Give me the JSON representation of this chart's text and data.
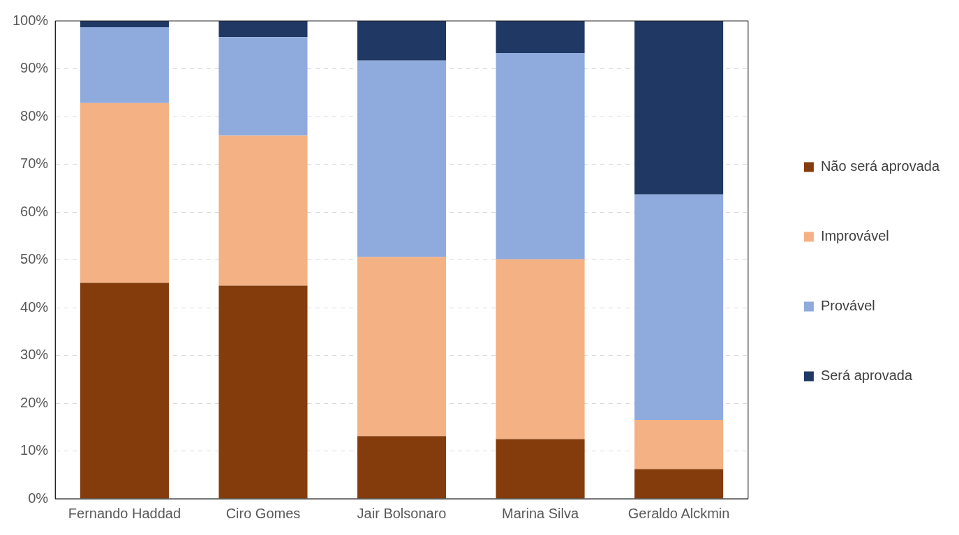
{
  "chart_data": {
    "type": "bar",
    "stacked": true,
    "categories": [
      "Fernando Haddad",
      "Ciro Gomes",
      "Jair Bolsonaro",
      "Marina Silva",
      "Geraldo Alckmin"
    ],
    "series": [
      {
        "name": "Não será aprovada",
        "color": "#843c0c",
        "values": [
          45.2,
          44.6,
          13.1,
          12.5,
          6.2
        ]
      },
      {
        "name": "Improvável",
        "color": "#f4b183",
        "values": [
          37.6,
          31.4,
          37.5,
          37.6,
          10.3
        ]
      },
      {
        "name": "Provável",
        "color": "#8faadc",
        "values": [
          15.9,
          20.6,
          41.1,
          43.2,
          47.2
        ]
      },
      {
        "name": "Será aprovada",
        "color": "#203864",
        "values": [
          1.3,
          3.4,
          8.3,
          6.7,
          36.3
        ]
      }
    ],
    "ylim": [
      0,
      100
    ],
    "yticks": [
      {
        "value": 0,
        "label": "0%"
      },
      {
        "value": 10,
        "label": "10%"
      },
      {
        "value": 20,
        "label": "20%"
      },
      {
        "value": 30,
        "label": "30%"
      },
      {
        "value": 40,
        "label": "40%"
      },
      {
        "value": 50,
        "label": "50%"
      },
      {
        "value": 60,
        "label": "60%"
      },
      {
        "value": 70,
        "label": "70%"
      },
      {
        "value": 80,
        "label": "80%"
      },
      {
        "value": 90,
        "label": "90%"
      },
      {
        "value": 100,
        "label": "100%"
      }
    ],
    "grid": "y",
    "legend": "right"
  }
}
